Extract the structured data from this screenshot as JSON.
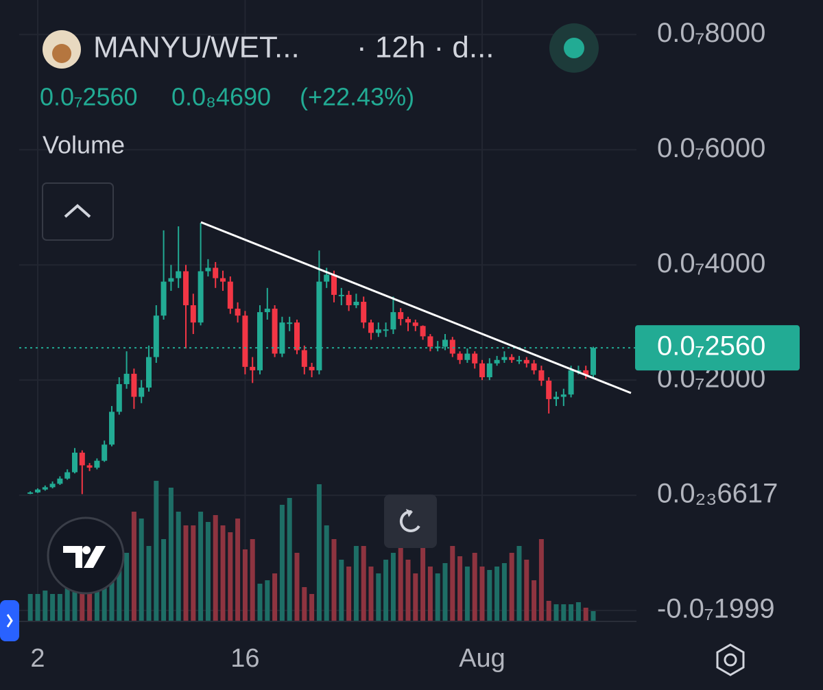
{
  "header": {
    "symbol": "MANYU/WET...",
    "interval": "· 12h · d...",
    "price": "0.0₇2560",
    "change": "0.0₈4690",
    "change_pct": "(+22.43%)",
    "indicator": "Volume"
  },
  "chart_data": {
    "type": "candlestick",
    "categories": [
      null,
      "2",
      null,
      null,
      null,
      null,
      null,
      null,
      null,
      null,
      null,
      null,
      null,
      null,
      null,
      null,
      null,
      null,
      null,
      null,
      null,
      null,
      null,
      null,
      null,
      null,
      null,
      null,
      null,
      "16",
      null,
      null,
      null,
      null,
      null,
      null,
      null,
      null,
      null,
      null,
      null,
      null,
      null,
      null,
      null,
      null,
      null,
      null,
      null,
      null,
      null,
      null,
      null,
      null,
      null,
      null,
      null,
      null,
      null,
      null,
      null,
      "Aug",
      null,
      null,
      null,
      null,
      null,
      null,
      null,
      null,
      null,
      null,
      null,
      null,
      null,
      null,
      null
    ],
    "open": [
      3e-10,
      5e-10,
      1e-09,
      1.4e-09,
      2e-09,
      2.9e-09,
      4e-09,
      7.4e-09,
      5.2e-09,
      4.8e-09,
      6e-09,
      8.8e-09,
      1.45e-08,
      1.93e-08,
      2.11e-08,
      1.71e-08,
      1.87e-08,
      2.4e-08,
      3.12e-08,
      3.71e-08,
      3.77e-08,
      3.89e-08,
      3.3e-08,
      3e-08,
      3.89e-08,
      3.95e-08,
      3.77e-08,
      3.71e-08,
      3.24e-08,
      3.12e-08,
      2.23e-08,
      2.17e-08,
      3.18e-08,
      3.24e-08,
      2.46e-08,
      3e-08,
      3e-08,
      2.52e-08,
      2.23e-08,
      2.17e-08,
      3.71e-08,
      3.83e-08,
      3.48e-08,
      3.48e-08,
      3.3e-08,
      3.36e-08,
      3e-08,
      2.82e-08,
      2.88e-08,
      2.88e-08,
      3.18e-08,
      3.06e-08,
      3e-08,
      2.94e-08,
      2.76e-08,
      2.58e-08,
      2.58e-08,
      2.7e-08,
      2.46e-08,
      2.35e-08,
      2.46e-08,
      2.29e-08,
      2.05e-08,
      2.29e-08,
      2.35e-08,
      2.4e-08,
      2.35e-08,
      2.35e-08,
      2.29e-08,
      2.17e-08,
      1.99e-08,
      1.67e-08,
      1.71e-08,
      1.75e-08,
      2.17e-08,
      2.17e-08,
      2.09e-08
    ],
    "high": [
      7e-10,
      1.2e-09,
      1.7e-09,
      2.4e-09,
      3.3e-09,
      4.5e-09,
      8.2e-09,
      7.8e-09,
      5.6e-09,
      6.4e-09,
      9.5e-09,
      1.55e-08,
      2.05e-08,
      2.5e-08,
      2.2e-08,
      2e-08,
      2.6e-08,
      3.3e-08,
      4.6e-08,
      4e-08,
      4.67e-08,
      4e-08,
      3.5e-08,
      4.73e-08,
      4.1e-08,
      4.05e-08,
      3.9e-08,
      3.8e-08,
      3.35e-08,
      3.2e-08,
      2.4e-08,
      3.3e-08,
      3.6e-08,
      3.3e-08,
      3.1e-08,
      3.1e-08,
      3.05e-08,
      2.6e-08,
      2.3e-08,
      4.25e-08,
      3.95e-08,
      3.9e-08,
      3.6e-08,
      3.55e-08,
      3.5e-08,
      3.45e-08,
      3.05e-08,
      3e-08,
      3e-08,
      3.45e-08,
      3.25e-08,
      3.1e-08,
      3.05e-08,
      2.95e-08,
      2.8e-08,
      2.68e-08,
      2.8e-08,
      2.75e-08,
      2.5e-08,
      2.55e-08,
      2.5e-08,
      2.35e-08,
      2.38e-08,
      2.42e-08,
      2.5e-08,
      2.45e-08,
      2.42e-08,
      2.4e-08,
      2.35e-08,
      2.25e-08,
      2.05e-08,
      1.8e-08,
      1.85e-08,
      2.25e-08,
      2.25e-08,
      2.25e-08,
      2.58e-08
    ],
    "low": [
      2e-10,
      4e-10,
      8e-10,
      1.2e-09,
      1.8e-09,
      2.7e-09,
      3.8e-09,
      2e-10,
      4.2e-09,
      4.5e-09,
      5.8e-09,
      8.5e-09,
      1.4e-08,
      1.85e-08,
      1.5e-08,
      1.6e-08,
      1.8e-08,
      2.3e-08,
      3.05e-08,
      3.55e-08,
      3.6e-08,
      2.55e-08,
      2.8e-08,
      2.95e-08,
      3.8e-08,
      3.6e-08,
      3.55e-08,
      3.15e-08,
      3e-08,
      2.1e-08,
      1.95e-08,
      2.1e-08,
      3.05e-08,
      2.4e-08,
      2.4e-08,
      2.85e-08,
      2.45e-08,
      2.1e-08,
      2.05e-08,
      2.1e-08,
      3.6e-08,
      3.35e-08,
      3.3e-08,
      3.2e-08,
      3.25e-08,
      2.9e-08,
      2.7e-08,
      2.75e-08,
      2.75e-08,
      2.8e-08,
      2.95e-08,
      2.85e-08,
      2.85e-08,
      2.7e-08,
      2.5e-08,
      2.5e-08,
      2.52e-08,
      2.4e-08,
      2.28e-08,
      2.3e-08,
      2.2e-08,
      2e-08,
      2e-08,
      2.25e-08,
      2.3e-08,
      2.3e-08,
      2.28e-08,
      2.22e-08,
      2.1e-08,
      1.9e-08,
      1.42e-08,
      1.55e-08,
      1.55e-08,
      1.7e-08,
      2.1e-08,
      2.02e-08,
      2.05e-08
    ],
    "close": [
      5e-10,
      1e-09,
      1.4e-09,
      2e-09,
      2.9e-09,
      4e-09,
      7.4e-09,
      5.2e-09,
      4.8e-09,
      6e-09,
      8.8e-09,
      1.45e-08,
      1.93e-08,
      2.11e-08,
      1.71e-08,
      1.87e-08,
      2.4e-08,
      3.12e-08,
      3.71e-08,
      3.77e-08,
      3.89e-08,
      3.3e-08,
      3e-08,
      3.89e-08,
      3.95e-08,
      3.77e-08,
      3.71e-08,
      3.24e-08,
      3.12e-08,
      2.23e-08,
      2.17e-08,
      3.18e-08,
      3.24e-08,
      2.46e-08,
      3e-08,
      3e-08,
      2.52e-08,
      2.23e-08,
      2.17e-08,
      3.71e-08,
      3.83e-08,
      3.48e-08,
      3.48e-08,
      3.3e-08,
      3.36e-08,
      3e-08,
      2.82e-08,
      2.88e-08,
      2.88e-08,
      3.18e-08,
      3.06e-08,
      3e-08,
      2.94e-08,
      2.76e-08,
      2.58e-08,
      2.58e-08,
      2.7e-08,
      2.46e-08,
      2.35e-08,
      2.46e-08,
      2.29e-08,
      2.05e-08,
      2.29e-08,
      2.35e-08,
      2.4e-08,
      2.35e-08,
      2.35e-08,
      2.29e-08,
      2.17e-08,
      1.99e-08,
      1.67e-08,
      1.71e-08,
      1.75e-08,
      2.17e-08,
      2.17e-08,
      2.09e-08,
      2.56e-08
    ],
    "volume": [
      40,
      40,
      45,
      40,
      40,
      50,
      70,
      150,
      60,
      55,
      50,
      80,
      90,
      100,
      160,
      150,
      110,
      205,
      120,
      195,
      160,
      140,
      140,
      160,
      145,
      155,
      140,
      130,
      150,
      105,
      120,
      55,
      60,
      70,
      170,
      180,
      100,
      50,
      40,
      200,
      140,
      120,
      90,
      80,
      110,
      110,
      80,
      70,
      90,
      100,
      110,
      90,
      70,
      110,
      80,
      70,
      85,
      110,
      95,
      80,
      100,
      80,
      75,
      80,
      85,
      100,
      110,
      90,
      60,
      120,
      30,
      25,
      25,
      25,
      28,
      20,
      15
    ],
    "up_color": "#22ab94",
    "down_color": "#f23645",
    "up_volume_color": "#1e6e66",
    "down_volume_color": "#8e3440",
    "ylim": [
      -2.19e-08,
      8.6e-08
    ],
    "yticks": [
      {
        "value": 8e-08,
        "label": "0.0₇8000"
      },
      {
        "value": 6e-08,
        "label": "0.0₇6000"
      },
      {
        "value": 4e-08,
        "label": "0.0₇4000"
      },
      {
        "value": 2e-08,
        "label": "0.0₇2000"
      },
      {
        "value": 6.617e-24,
        "label": "0.0₂₃6617"
      },
      {
        "value": -1.999e-08,
        "label": "-0.0₇1999"
      }
    ],
    "grid": true
  }
}
